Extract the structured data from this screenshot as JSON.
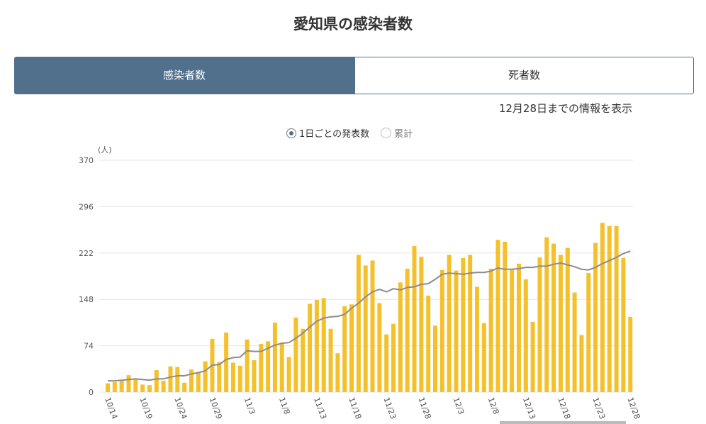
{
  "page_title": "愛知県の感染者数",
  "tabs": [
    "感染者数",
    "死者数"
  ],
  "note": "12月28日までの情報を表示",
  "toggles": [
    "1日ごとの発表数",
    "累計"
  ],
  "chart_data": {
    "type": "bar",
    "unit_label": "(人)",
    "categories": [
      "10/14",
      null,
      null,
      null,
      null,
      "10/19",
      null,
      null,
      null,
      null,
      "10/24",
      null,
      null,
      null,
      null,
      "10/29",
      null,
      null,
      null,
      null,
      "11/3",
      null,
      null,
      null,
      null,
      "11/8",
      null,
      null,
      null,
      null,
      "11/13",
      null,
      null,
      null,
      null,
      "11/18",
      null,
      null,
      null,
      null,
      "11/23",
      null,
      null,
      null,
      null,
      "11/28",
      null,
      null,
      null,
      null,
      "12/3",
      null,
      null,
      null,
      null,
      "12/8",
      null,
      null,
      null,
      null,
      "12/13",
      null,
      null,
      null,
      null,
      "12/18",
      null,
      null,
      null,
      null,
      "12/23",
      null,
      null,
      null,
      null,
      "12/28"
    ],
    "series": [
      {
        "color": "#f4c12c",
        "values": [
          14,
          16,
          18,
          27,
          20,
          12,
          11,
          35,
          18,
          41,
          40,
          15,
          36,
          32,
          49,
          85,
          48,
          95,
          47,
          42,
          84,
          51,
          77,
          81,
          111,
          79,
          56,
          119,
          101,
          141,
          147,
          150,
          101,
          62,
          137,
          140,
          219,
          202,
          210,
          142,
          92,
          109,
          175,
          197,
          233,
          216,
          154,
          106,
          195,
          219,
          194,
          214,
          219,
          168,
          110,
          197,
          243,
          240,
          195,
          205,
          180,
          112,
          215,
          247,
          237,
          219,
          230,
          159,
          91,
          190,
          238,
          270,
          265,
          265,
          214,
          120
        ]
      },
      {
        "type": "line",
        "color": "#8c8c8c",
        "values": [
          18,
          18,
          19,
          20,
          21,
          20,
          19,
          21,
          21,
          24,
          26,
          26,
          29,
          31,
          34,
          43,
          44,
          52,
          55,
          56,
          66,
          65,
          65,
          70,
          75,
          78,
          79,
          86,
          94,
          104,
          113,
          118,
          120,
          121,
          124,
          134,
          142,
          152,
          160,
          164,
          160,
          165,
          163,
          167,
          168,
          172,
          173,
          180,
          188,
          190,
          189,
          188,
          190,
          191,
          191,
          193,
          198,
          196,
          196,
          197,
          199,
          199,
          201,
          201,
          204,
          206,
          203,
          200,
          196,
          195,
          199,
          205,
          210,
          215,
          221,
          225
        ]
      }
    ],
    "ylim": [
      0,
      370
    ],
    "yticks": [
      0,
      74,
      148,
      222,
      296,
      370
    ],
    "grid": true
  }
}
